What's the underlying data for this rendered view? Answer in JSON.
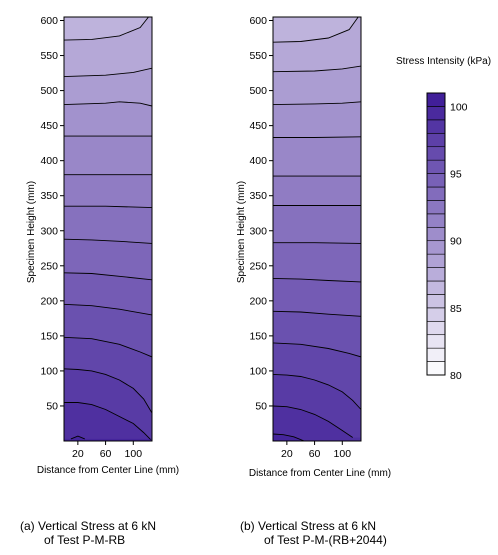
{
  "chart_data": {
    "type": "contour",
    "colorbar": {
      "title": "Stress Intensity (kPa)",
      "ticks": [
        80,
        85,
        90,
        95,
        100
      ],
      "levels": [
        80,
        81,
        82,
        83,
        84,
        85,
        86,
        87,
        88,
        89,
        90,
        91,
        92,
        93,
        94,
        95,
        96,
        97,
        98,
        99,
        100,
        101
      ],
      "color_low": "#ffffff",
      "color_high": "#3c1a96"
    },
    "panels": [
      {
        "caption_line1": "(a) Vertical Stress at 6 kN",
        "caption_line2": "of Test P-M-RB",
        "xlabel": "Distance from Center Line (mm)",
        "ylabel": "Specimen Height (mm)",
        "xticks": [
          20,
          60,
          100
        ],
        "yticks": [
          50,
          100,
          150,
          200,
          250,
          300,
          350,
          400,
          450,
          500,
          550,
          600
        ],
        "xlim": [
          0,
          127
        ],
        "ylim": [
          0,
          605
        ],
        "contours": [
          {
            "level": 100,
            "points": [
              [
                10,
                3
              ],
              [
                20,
                7
              ],
              [
                30,
                3
              ]
            ]
          },
          {
            "level": 99,
            "points": [
              [
                0,
                55
              ],
              [
                20,
                55
              ],
              [
                40,
                52
              ],
              [
                60,
                45
              ],
              [
                80,
                35
              ],
              [
                100,
                25
              ],
              [
                115,
                12
              ],
              [
                125,
                2
              ]
            ]
          },
          {
            "level": 98,
            "points": [
              [
                0,
                103
              ],
              [
                20,
                102
              ],
              [
                40,
                100
              ],
              [
                60,
                95
              ],
              [
                80,
                87
              ],
              [
                100,
                75
              ],
              [
                115,
                60
              ],
              [
                127,
                40
              ]
            ]
          },
          {
            "level": 97,
            "points": [
              [
                0,
                148
              ],
              [
                40,
                146
              ],
              [
                80,
                138
              ],
              [
                110,
                127
              ],
              [
                127,
                120
              ]
            ]
          },
          {
            "level": 96,
            "points": [
              [
                0,
                195
              ],
              [
                40,
                193
              ],
              [
                80,
                188
              ],
              [
                127,
                180
              ]
            ]
          },
          {
            "level": 95,
            "points": [
              [
                0,
                240
              ],
              [
                40,
                239
              ],
              [
                80,
                235
              ],
              [
                127,
                230
              ]
            ]
          },
          {
            "level": 94,
            "points": [
              [
                0,
                288
              ],
              [
                40,
                287
              ],
              [
                80,
                285
              ],
              [
                127,
                282
              ]
            ]
          },
          {
            "level": 93,
            "points": [
              [
                0,
                335
              ],
              [
                60,
                335
              ],
              [
                127,
                333
              ]
            ]
          },
          {
            "level": 92,
            "points": [
              [
                0,
                380
              ],
              [
                60,
                380
              ],
              [
                127,
                380
              ]
            ]
          },
          {
            "level": 91,
            "points": [
              [
                0,
                435
              ],
              [
                60,
                435
              ],
              [
                127,
                435
              ]
            ]
          },
          {
            "level": 90,
            "points": [
              [
                0,
                480
              ],
              [
                60,
                482
              ],
              [
                80,
                484
              ],
              [
                110,
                482
              ],
              [
                127,
                478
              ]
            ]
          },
          {
            "level": 89,
            "points": [
              [
                0,
                520
              ],
              [
                60,
                522
              ],
              [
                100,
                526
              ],
              [
                127,
                532
              ]
            ]
          },
          {
            "level": 88,
            "points": [
              [
                0,
                572
              ],
              [
                40,
                573
              ],
              [
                80,
                578
              ],
              [
                110,
                590
              ],
              [
                122,
                605
              ]
            ]
          }
        ]
      },
      {
        "caption_line1": "(b) Vertical Stress at 6 kN",
        "caption_line2": "of Test P-M-(RB+2044)",
        "xlabel": "Distance from Center Line (mm)",
        "ylabel": "Specimen Height (mm)",
        "xticks": [
          20,
          60,
          100
        ],
        "yticks": [
          50,
          100,
          150,
          200,
          250,
          300,
          350,
          400,
          450,
          500,
          550,
          600
        ],
        "xlim": [
          0,
          127
        ],
        "ylim": [
          0,
          605
        ],
        "contours": [
          {
            "level": 100,
            "points": [
              [
                0,
                10
              ],
              [
                15,
                9
              ],
              [
                30,
                6
              ],
              [
                45,
                0
              ]
            ]
          },
          {
            "level": 99,
            "points": [
              [
                0,
                50
              ],
              [
                20,
                49
              ],
              [
                40,
                45
              ],
              [
                60,
                38
              ],
              [
                80,
                28
              ],
              [
                100,
                15
              ],
              [
                115,
                5
              ]
            ]
          },
          {
            "level": 98,
            "points": [
              [
                0,
                95
              ],
              [
                20,
                94
              ],
              [
                40,
                92
              ],
              [
                60,
                87
              ],
              [
                80,
                80
              ],
              [
                100,
                70
              ],
              [
                115,
                58
              ],
              [
                127,
                45
              ]
            ]
          },
          {
            "level": 97,
            "points": [
              [
                0,
                140
              ],
              [
                40,
                138
              ],
              [
                80,
                132
              ],
              [
                110,
                125
              ],
              [
                127,
                120
              ]
            ]
          },
          {
            "level": 96,
            "points": [
              [
                0,
                185
              ],
              [
                40,
                184
              ],
              [
                80,
                181
              ],
              [
                127,
                178
              ]
            ]
          },
          {
            "level": 95,
            "points": [
              [
                0,
                232
              ],
              [
                40,
                231
              ],
              [
                80,
                229
              ],
              [
                127,
                227
              ]
            ]
          },
          {
            "level": 94,
            "points": [
              [
                0,
                283
              ],
              [
                60,
                283
              ],
              [
                127,
                282
              ]
            ]
          },
          {
            "level": 93,
            "points": [
              [
                0,
                336
              ],
              [
                60,
                336
              ],
              [
                127,
                336
              ]
            ]
          },
          {
            "level": 92,
            "points": [
              [
                0,
                378
              ],
              [
                60,
                378
              ],
              [
                127,
                378
              ]
            ]
          },
          {
            "level": 91,
            "points": [
              [
                0,
                433
              ],
              [
                60,
                433
              ],
              [
                127,
                434
              ]
            ]
          },
          {
            "level": 90,
            "points": [
              [
                0,
                480
              ],
              [
                60,
                481
              ],
              [
                100,
                482
              ],
              [
                127,
                484
              ]
            ]
          },
          {
            "level": 89,
            "points": [
              [
                0,
                527
              ],
              [
                60,
                528
              ],
              [
                100,
                531
              ],
              [
                127,
                535
              ]
            ]
          },
          {
            "level": 88,
            "points": [
              [
                0,
                569
              ],
              [
                40,
                570
              ],
              [
                80,
                575
              ],
              [
                110,
                587
              ],
              [
                123,
                605
              ]
            ]
          }
        ]
      }
    ]
  }
}
